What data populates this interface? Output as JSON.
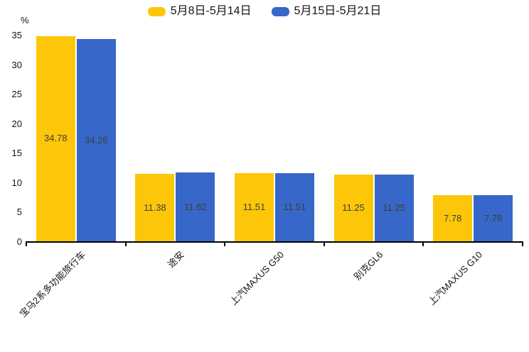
{
  "chart_data": {
    "type": "bar",
    "title": "",
    "unit_label": "%",
    "categories": [
      "宝马2系多功能旅行车",
      "途安",
      "上汽MAXUS G50",
      "别克GL6",
      "上汽MAXUS G10"
    ],
    "series": [
      {
        "name": "5月8日-5月14日",
        "color": "#FDC609",
        "values": [
          34.78,
          11.38,
          11.51,
          11.25,
          7.78
        ]
      },
      {
        "name": "5月15日-5月21日",
        "color": "#3767C9",
        "values": [
          34.26,
          11.62,
          11.51,
          11.25,
          7.78
        ]
      }
    ],
    "ylabel": "%",
    "ylim": [
      0,
      35
    ],
    "yticks": [
      0,
      5,
      10,
      15,
      20,
      25,
      30,
      35
    ],
    "grid": false,
    "legend_position": "top-center",
    "value_labels": "inside-center",
    "value_label_color": "#3d3d3d",
    "axis_color": "#000000",
    "xlabel_rotation_deg": -45
  }
}
